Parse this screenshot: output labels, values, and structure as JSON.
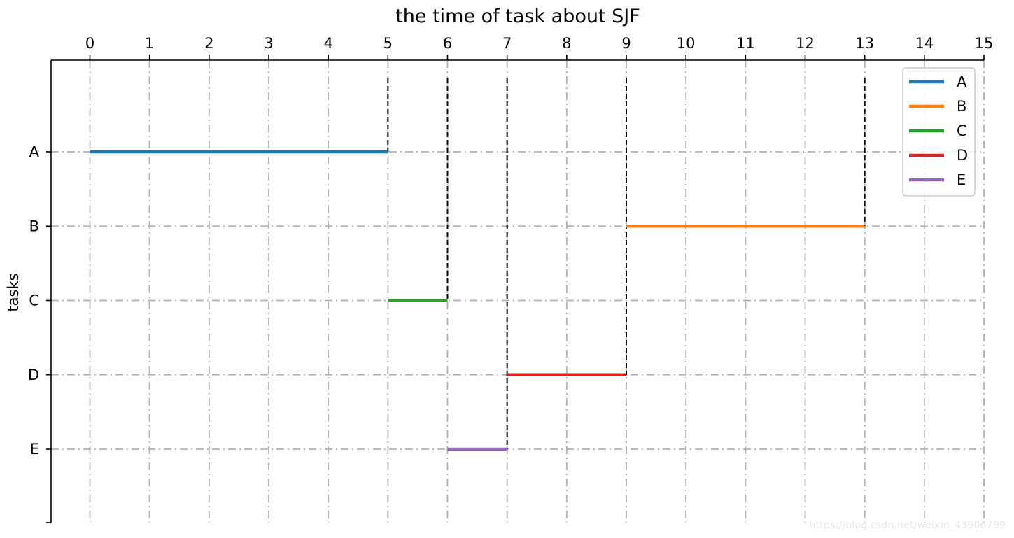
{
  "chart_data": {
    "type": "gantt",
    "title": "the time of task about SJF",
    "xlabel": "",
    "ylabel": "tasks",
    "x_ticks": [
      0,
      1,
      2,
      3,
      4,
      5,
      6,
      7,
      8,
      9,
      10,
      11,
      12,
      13,
      14,
      15
    ],
    "xlim": [
      -0.65,
      15
    ],
    "categories": [
      "A",
      "B",
      "C",
      "D",
      "E"
    ],
    "grid": true,
    "legend_position": "top-right",
    "series": [
      {
        "name": "A",
        "color": "#1f77b4",
        "start": 0,
        "end": 5
      },
      {
        "name": "B",
        "color": "#ff7f0e",
        "start": 9,
        "end": 13
      },
      {
        "name": "C",
        "color": "#2ca02c",
        "start": 5,
        "end": 6
      },
      {
        "name": "D",
        "color": "#d62728",
        "start": 7,
        "end": 9
      },
      {
        "name": "E",
        "color": "#9467bd",
        "start": 6,
        "end": 7
      }
    ],
    "completion_markers": [
      {
        "task": "A",
        "x": 5
      },
      {
        "task": "C",
        "x": 6
      },
      {
        "task": "E",
        "x": 7
      },
      {
        "task": "D",
        "x": 9
      },
      {
        "task": "B",
        "x": 13
      }
    ]
  },
  "watermark": "https://blog.csdn.net/weixin_43906799"
}
